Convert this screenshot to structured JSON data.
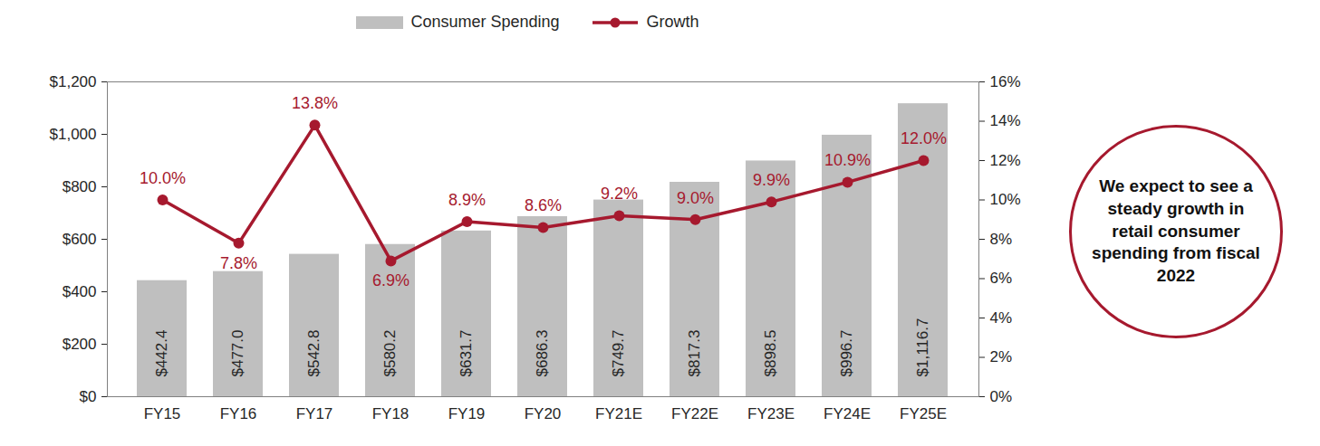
{
  "chart_data": {
    "type": "bar",
    "categories": [
      "FY15",
      "FY16",
      "FY17",
      "FY18",
      "FY19",
      "FY20",
      "FY21E",
      "FY22E",
      "FY23E",
      "FY24E",
      "FY25E"
    ],
    "series": [
      {
        "name": "Consumer Spending",
        "type": "bar",
        "color": "#bfbfbf",
        "values": [
          442.4,
          477.0,
          542.8,
          580.2,
          631.7,
          686.3,
          749.7,
          817.3,
          898.5,
          996.7,
          1116.7
        ],
        "value_labels": [
          "$442.4",
          "$477.0",
          "$542.8",
          "$580.2",
          "$631.7",
          "$686.3",
          "$749.7",
          "$817.3",
          "$898.5",
          "$996.7",
          "$1,116.7"
        ]
      },
      {
        "name": "Growth",
        "type": "line",
        "axis": "y2",
        "color": "#a6192e",
        "marker": "circle",
        "values": [
          10.0,
          7.8,
          13.8,
          6.9,
          8.9,
          8.6,
          9.2,
          9.0,
          9.9,
          10.9,
          12.0
        ],
        "value_labels": [
          "10.0%",
          "7.8%",
          "13.8%",
          "6.9%",
          "8.9%",
          "8.6%",
          "9.2%",
          "9.0%",
          "9.9%",
          "10.9%",
          "12.0%"
        ]
      }
    ],
    "ylim": [
      0,
      1200
    ],
    "yticks": [
      {
        "value": 0,
        "label": "$0"
      },
      {
        "value": 200,
        "label": "$200"
      },
      {
        "value": 400,
        "label": "$400"
      },
      {
        "value": 600,
        "label": "$600"
      },
      {
        "value": 800,
        "label": "$800"
      },
      {
        "value": 1000,
        "label": "$1,000"
      },
      {
        "value": 1200,
        "label": "$1,200"
      }
    ],
    "y2lim": [
      0,
      16
    ],
    "y2ticks": [
      {
        "value": 0,
        "label": "0%"
      },
      {
        "value": 2,
        "label": "2%"
      },
      {
        "value": 4,
        "label": "4%"
      },
      {
        "value": 6,
        "label": "6%"
      },
      {
        "value": 8,
        "label": "8%"
      },
      {
        "value": 10,
        "label": "10%"
      },
      {
        "value": 12,
        "label": "12%"
      },
      {
        "value": 14,
        "label": "14%"
      },
      {
        "value": 16,
        "label": "16%"
      }
    ],
    "data_labels": true,
    "legend": "top",
    "annotations": [
      "We expect to see a steady growth in retail consumer spending from fiscal 2022"
    ]
  }
}
